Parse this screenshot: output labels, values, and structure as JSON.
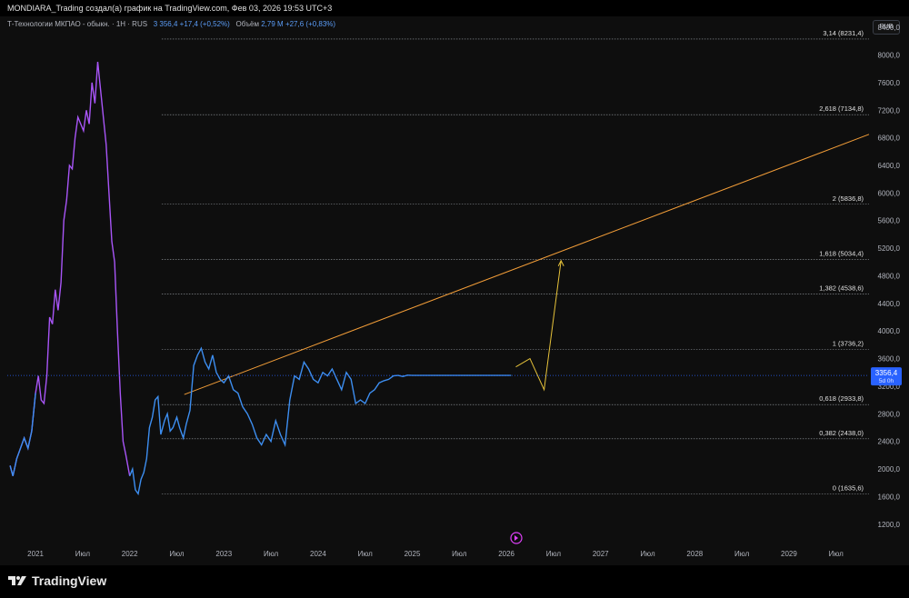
{
  "header": {
    "title": "MONDIARA_Trading создал(а) график на TradingView.com, Фев 03, 2026 19:53 UTC+3"
  },
  "legend": {
    "symbol": "Т-Технологии МКПАО - обыкн. · 1Н · RUS",
    "price": "3 356,4",
    "change": "+17,4 (+0,52%)",
    "volume_label": "Объём",
    "volume": "2,79 M",
    "volume_change": "+27,6 (+0,83%)"
  },
  "currency_button": "RUB",
  "footer": {
    "brand": "TradingView"
  },
  "colors": {
    "background": "#0e0e0e",
    "price_line_start": "#a855f7",
    "price_line": "#3d8ef0",
    "trendline": "#f29d38",
    "projection": "#e6c23a",
    "fib_lines": "#9aa0a6",
    "last_price_badge": "#2962ff"
  },
  "chart_data": {
    "type": "line",
    "title": "",
    "xlabel": "",
    "ylabel": "",
    "x_ticks": [
      "2021",
      "Июл",
      "2022",
      "Июл",
      "2023",
      "Июл",
      "2024",
      "Июл",
      "2025",
      "Июл",
      "2026",
      "Июл",
      "2027",
      "Июл",
      "2028",
      "Июл",
      "2029",
      "Июл"
    ],
    "y_ticks": [
      "1200,0",
      "1600,0",
      "2000,0",
      "2400,0",
      "2800,0",
      "3200,0",
      "3600,0",
      "4000,0",
      "4400,0",
      "4800,0",
      "5200,0",
      "5600,0",
      "6000,0",
      "6400,0",
      "6800,0",
      "7200,0",
      "7600,0",
      "8000,0",
      "8400,0"
    ],
    "y_tick_values": [
      1200,
      1600,
      2000,
      2400,
      2800,
      3200,
      3600,
      4000,
      4400,
      4800,
      5200,
      5600,
      6000,
      6400,
      6800,
      7200,
      7600,
      8000,
      8400
    ],
    "ylim": [
      1000,
      8560
    ],
    "xlim": [
      2020.7,
      2029.85
    ],
    "grid": false,
    "last_price": {
      "value": 3356.4,
      "label": "3356,4",
      "sublabel": "5d 0h"
    },
    "series": [
      {
        "values_x": [
          2020.73,
          2020.76,
          2020.8,
          2020.84,
          2020.88,
          2020.92,
          2020.96,
          2021.0,
          2021.03,
          2021.06,
          2021.09,
          2021.12,
          2021.15,
          2021.18,
          2021.21,
          2021.24,
          2021.27,
          2021.3,
          2021.33,
          2021.36,
          2021.39,
          2021.42,
          2021.45,
          2021.48,
          2021.51,
          2021.54,
          2021.57,
          2021.6,
          2021.63,
          2021.66,
          2021.69,
          2021.72,
          2021.75,
          2021.78,
          2021.81,
          2021.84,
          2021.87,
          2021.9,
          2021.93,
          2021.96,
          2022.0,
          2022.03,
          2022.06,
          2022.09,
          2022.12,
          2022.15,
          2022.18,
          2022.21,
          2022.24,
          2022.27,
          2022.3,
          2022.33,
          2022.37,
          2022.4,
          2022.43,
          2022.46,
          2022.5,
          2022.53,
          2022.57,
          2022.6,
          2022.64,
          2022.68,
          2022.72,
          2022.76,
          2022.8,
          2022.84,
          2022.88,
          2022.92,
          2022.96,
          2023.0,
          2023.05,
          2023.1,
          2023.15,
          2023.2,
          2023.25,
          2023.3,
          2023.35,
          2023.4,
          2023.45,
          2023.5,
          2023.55,
          2023.6,
          2023.65,
          2023.7,
          2023.75,
          2023.8,
          2023.85,
          2023.9,
          2023.95,
          2024.0,
          2024.05,
          2024.1,
          2024.15,
          2024.2,
          2024.25,
          2024.3,
          2024.35,
          2024.4,
          2024.45,
          2024.5,
          2024.55,
          2024.6,
          2024.65,
          2024.7,
          2024.75,
          2024.8,
          2024.85,
          2024.9,
          2024.95,
          2025.0,
          2025.05,
          2025.1,
          2025.15,
          2025.2,
          2025.25,
          2025.3,
          2025.35,
          2025.4,
          2025.45,
          2025.5,
          2025.55,
          2025.6,
          2025.65,
          2025.7,
          2025.75,
          2025.8,
          2025.85,
          2025.9,
          2025.95,
          2026.0,
          2026.05
        ],
        "values": [
          2050,
          1900,
          2150,
          2300,
          2450,
          2300,
          2550,
          3100,
          3350,
          3000,
          2950,
          3350,
          4200,
          4100,
          4600,
          4300,
          4700,
          5600,
          5900,
          6400,
          6350,
          6800,
          7100,
          7000,
          6900,
          7200,
          7000,
          7600,
          7300,
          7900,
          7500,
          7100,
          6700,
          6000,
          5300,
          5000,
          4000,
          3100,
          2400,
          2200,
          1900,
          2000,
          1700,
          1640,
          1850,
          1950,
          2150,
          2600,
          2750,
          3000,
          3050,
          2500,
          2700,
          2800,
          2550,
          2600,
          2750,
          2600,
          2450,
          2650,
          2850,
          3500,
          3650,
          3750,
          3550,
          3450,
          3650,
          3400,
          3300,
          3250,
          3350,
          3150,
          3100,
          2900,
          2800,
          2650,
          2450,
          2350,
          2500,
          2400,
          2700,
          2500,
          2350,
          3000,
          3350,
          3300,
          3550,
          3450,
          3300,
          3250,
          3400,
          3350,
          3450,
          3300,
          3150,
          3400,
          3300,
          2950,
          3000,
          2950,
          3100,
          3150,
          3250,
          3280,
          3300,
          3350,
          3356,
          3340,
          3360,
          3356,
          3356,
          3356,
          3356,
          3356,
          3356,
          3356,
          3356,
          3356,
          3356,
          3356,
          3356,
          3356,
          3356,
          3356,
          3356,
          3356,
          3356,
          3356,
          3356,
          3356,
          3356
        ]
      }
    ],
    "fib_levels": [
      {
        "value": 8231.4,
        "label": "3,14 (8231,4)"
      },
      {
        "value": 7134.8,
        "label": "2,618 (7134,8)"
      },
      {
        "value": 5836.8,
        "label": "2 (5836,8)"
      },
      {
        "value": 5034.4,
        "label": "1,618 (5034,4)"
      },
      {
        "value": 4538.6,
        "label": "1,382 (4538,6)"
      },
      {
        "value": 3736.2,
        "label": "1 (3736,2)"
      },
      {
        "value": 2933.8,
        "label": "0,618 (2933,8)"
      },
      {
        "value": 2438.0,
        "label": "0,382 (2438,0)"
      },
      {
        "value": 1635.6,
        "label": "0 (1635,6)"
      }
    ],
    "fib_x_start": 2022.34,
    "trendline": {
      "x1": 2022.58,
      "y1": 3080,
      "x2": 2029.85,
      "y2": 6850
    },
    "projection": {
      "x": [
        2026.1,
        2026.25,
        2026.4,
        2026.58
      ],
      "y": [
        3480,
        3600,
        3150,
        5020
      ]
    }
  }
}
